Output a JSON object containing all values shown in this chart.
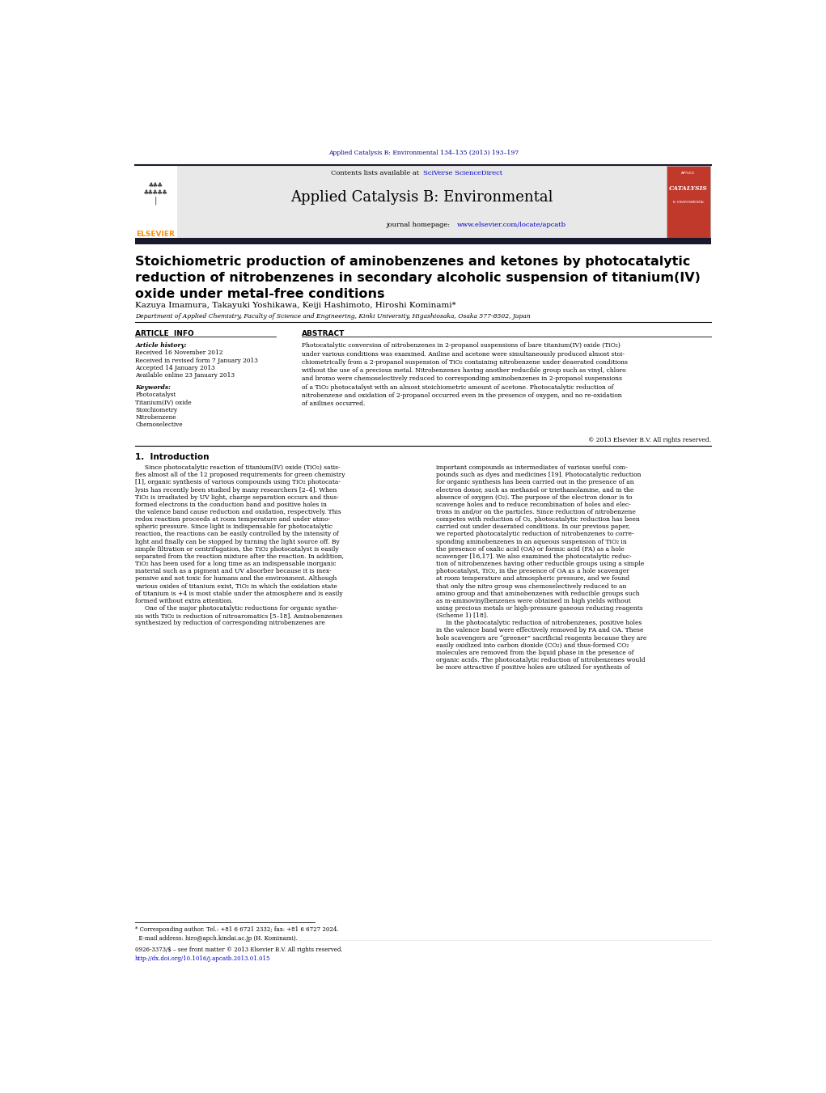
{
  "page_width": 10.21,
  "page_height": 13.51,
  "bg_color": "#ffffff",
  "header_journal_ref": "Applied Catalysis B: Environmental 134–135 (2013) 193–197",
  "header_ref_color": "#00008B",
  "journal_banner_bg": "#e8e8e8",
  "journal_banner_text": "Applied Catalysis B: Environmental",
  "contents_text": "Contents lists available at ",
  "sciverse_text": "SciVerse ScienceDirect",
  "sciverse_color": "#0000CC",
  "homepage_text": "journal homepage: ",
  "homepage_url": "www.elsevier.com/locate/apcatb",
  "homepage_url_color": "#0000CC",
  "elsevier_color": "#FF8C00",
  "dark_bar_color": "#1a1a2e",
  "article_title": "Stoichiometric production of aminobenzenes and ketones by photocatalytic\nreduction of nitrobenzenes in secondary alcoholic suspension of titanium(IV)\noxide under metal-free conditions",
  "authors": "Kazuya Imamura, Takayuki Yoshikawa, Keiji Hashimoto, Hiroshi Kominami*",
  "affiliation": "Department of Applied Chemistry, Faculty of Science and Engineering, Kinki University, Higashiosaka, Osaka 577-8502, Japan",
  "article_info_header": "ARTICLE  INFO",
  "abstract_header": "ABSTRACT",
  "article_history_label": "Article history:",
  "received1": "Received 16 November 2012",
  "received2": "Received in revised form 7 January 2013",
  "accepted": "Accepted 14 January 2013",
  "available": "Available online 23 January 2013",
  "keywords_label": "Keywords:",
  "keywords": [
    "Photocatalyst",
    "Titanium(IV) oxide",
    "Stoichiometry",
    "Nitrobenzene",
    "Chemoselective"
  ],
  "abstract_text": "Photocatalytic conversion of nitrobenzenes in 2-propanol suspensions of bare titanium(IV) oxide (TiO₂)\nunder various conditions was examined. Aniline and acetone were simultaneously produced almost stoi-\nchiometrically from a 2-propanol suspension of TiO₂ containing nitrobenzene under deaerated conditions\nwithout the use of a precious metal. Nitrobenzenes having another reducible group such as vinyl, chloro\nand bromo were chemoselectively reduced to corresponding aminobenzenes in 2-propanol suspensions\nof a TiO₂ photocatalyst with an almost stoichiometric amount of acetone. Photocatalytic reduction of\nnitrobenzene and oxidation of 2-propanol occurred even in the presence of oxygen, and no re-oxidation\nof anilines occurred.",
  "copyright_text": "© 2013 Elsevier B.V. All rights reserved.",
  "section1_header": "1.  Introduction",
  "section1_col1_lines": [
    "     Since photocatalytic reaction of titanium(IV) oxide (TiO₂) satis-",
    "fies almost all of the 12 proposed requirements for green chemistry",
    "[1], organic synthesis of various compounds using TiO₂ photocata-",
    "lysis has recently been studied by many researchers [2–4]. When",
    "TiO₂ is irradiated by UV light, charge separation occurs and thus-",
    "formed electrons in the conduction band and positive holes in",
    "the valence band cause reduction and oxidation, respectively. This",
    "redox reaction proceeds at room temperature and under atmo-",
    "spheric pressure. Since light is indispensable for photocatalytic",
    "reaction, the reactions can be easily controlled by the intensity of",
    "light and finally can be stopped by turning the light source off. By",
    "simple filtration or centrifugation, the TiO₂ photocatalyst is easily",
    "separated from the reaction mixture after the reaction. In addition,",
    "TiO₂ has been used for a long time as an indispensable inorganic",
    "material such as a pigment and UV absorber because it is inex-",
    "pensive and not toxic for humans and the environment. Although",
    "various oxides of titanium exist, TiO₂ in which the oxidation state",
    "of titanium is +4 is most stable under the atmosphere and is easily",
    "formed without extra attention.",
    "     One of the major photocatalytic reductions for organic synthe-",
    "sis with TiO₂ is reduction of nitroaromatics [5–18]. Aminobenzenes",
    "synthesized by reduction of corresponding nitrobenzenes are"
  ],
  "section1_col2_lines": [
    "important compounds as intermediates of various useful com-",
    "pounds such as dyes and medicines [19]. Photocatalytic reduction",
    "for organic synthesis has been carried out in the presence of an",
    "electron donor, such as methanol or triethanolamine, and in the",
    "absence of oxygen (O₂). The purpose of the electron donor is to",
    "scavenge holes and to reduce recombination of holes and elec-",
    "trons in and/or on the particles. Since reduction of nitrobenzene",
    "competes with reduction of O₂, photocatalytic reduction has been",
    "carried out under deaerated conditions. In our previous paper,",
    "we reported photocatalytic reduction of nitrobenzenes to corre-",
    "sponding aminobenzenes in an aqueous suspension of TiO₂ in",
    "the presence of oxalic acid (OA) or formic acid (FA) as a hole",
    "scavenger [16,17]. We also examined the photocatalytic reduc-",
    "tion of nitrobenzenes having other reducible groups using a simple",
    "photocatalyst, TiO₂, in the presence of OA as a hole scavenger",
    "at room temperature and atmospheric pressure, and we found",
    "that only the nitro group was chemoselectively reduced to an",
    "amino group and that aminobenzenes with reducible groups such",
    "as m-aminovinylbenzenes were obtained in high yields without",
    "using precious metals or high-pressure gaseous reducing reagents",
    "(Scheme 1) [18].",
    "     In the photocatalytic reduction of nitrobenzenes, positive holes",
    "in the valence band were effectively removed by FA and OA. These",
    "hole scavengers are “greener” sacrificial reagents because they are",
    "easily oxidized into carbon dioxide (CO₂) and thus-formed CO₂",
    "molecules are removed from the liquid phase in the presence of",
    "organic acids. The photocatalytic reduction of nitrobenzenes would",
    "be more attractive if positive holes are utilized for synthesis of"
  ],
  "footnote_star": "* Corresponding author. Tel.: +81 6 6721 2332; fax: +81 6 6727 2024.",
  "footnote_email": "  E-mail address: hiro@apch.kindai.ac.jp (H. Kominami).",
  "footnote_issn": "0926-3373/$ – see front matter © 2013 Elsevier B.V. All rights reserved.",
  "footnote_doi": "http://dx.doi.org/10.1016/j.apcatb.2013.01.015"
}
